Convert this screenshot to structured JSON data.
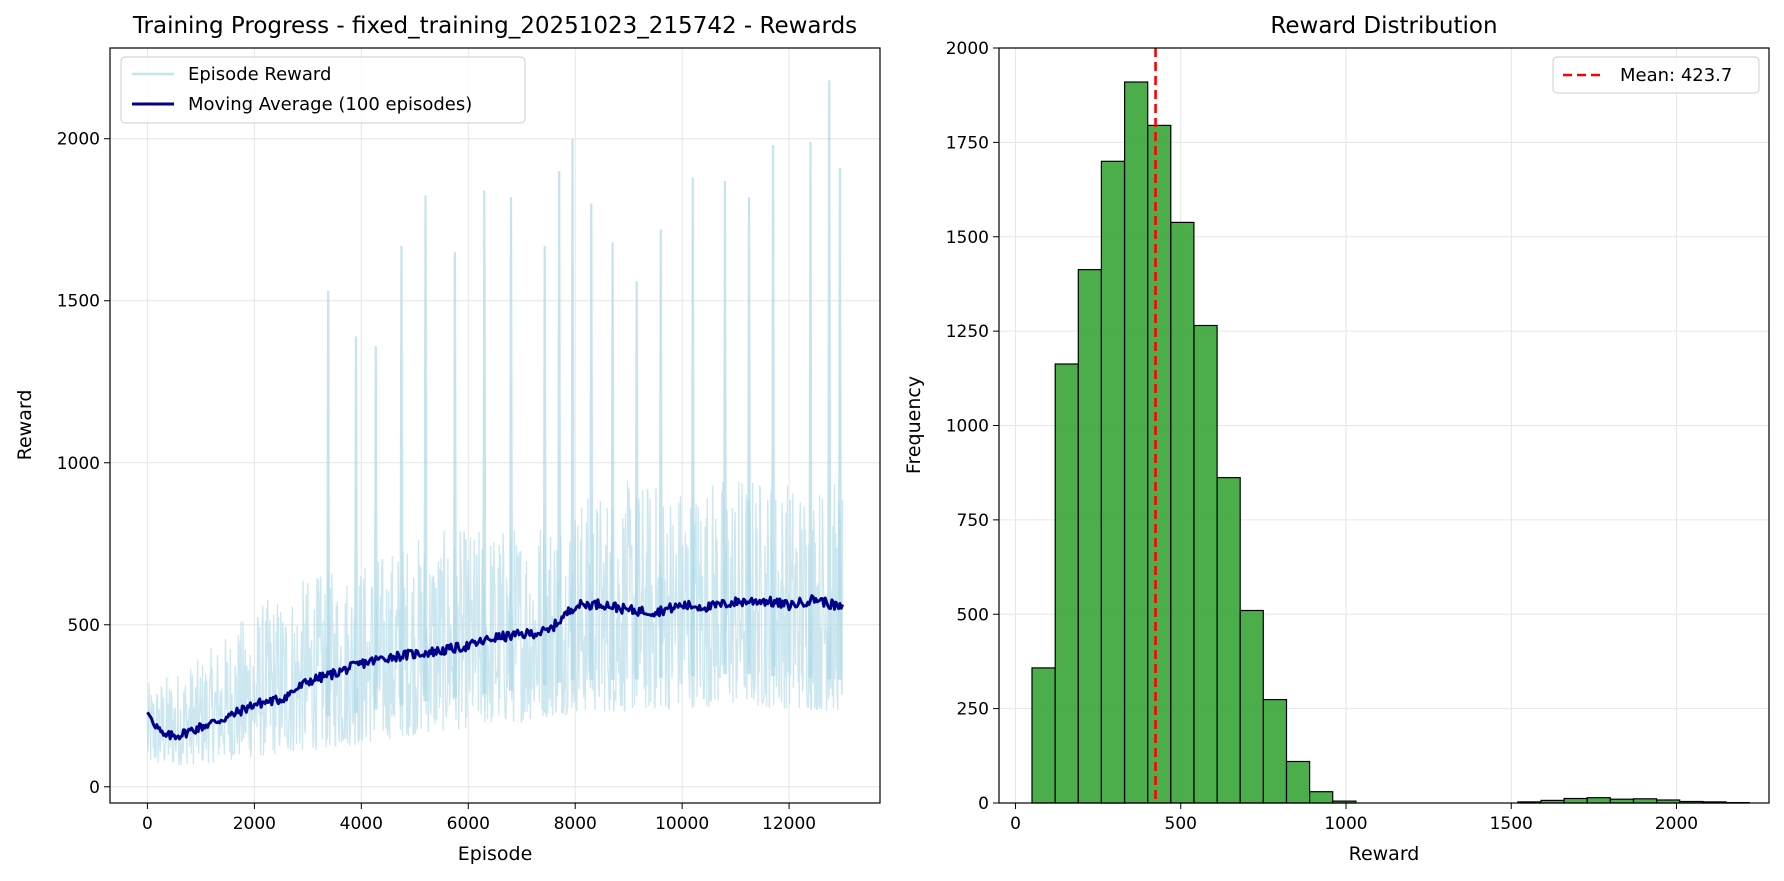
{
  "colors": {
    "episode_reward": "#add8e6",
    "moving_average": "#00008b",
    "histogram_bar": "#2ca02c",
    "histogram_edge": "#000000",
    "mean_line": "#ff0000",
    "grid": "#e6e6e6"
  },
  "chart_data": [
    {
      "type": "line",
      "title": "Training Progress - fixed_training_20251023_215742 - Rewards",
      "xlabel": "Episode",
      "ylabel": "Reward",
      "xlim": [
        -700,
        13700
      ],
      "ylim": [
        -50,
        2280
      ],
      "grid": true,
      "legend_position": "top-left",
      "xticks": [
        0,
        2000,
        4000,
        6000,
        8000,
        10000,
        12000
      ],
      "yticks": [
        0,
        500,
        1000,
        1500,
        2000
      ],
      "series": [
        {
          "name": "Episode Reward",
          "style": "thin light-blue line, noisy per-episode values",
          "episodes": 13000,
          "band_x": [
            0,
            1000,
            2000,
            3000,
            4000,
            5000,
            6000,
            7000,
            8000,
            9000,
            10000,
            11000,
            12000,
            13000
          ],
          "band_low": [
            60,
            70,
            90,
            110,
            130,
            160,
            180,
            200,
            230,
            230,
            240,
            250,
            240,
            230
          ],
          "band_high": [
            320,
            400,
            560,
            650,
            700,
            780,
            800,
            820,
            900,
            950,
            950,
            980,
            960,
            950
          ],
          "spikes": [
            {
              "x": 3380,
              "y": 1530
            },
            {
              "x": 3900,
              "y": 1390
            },
            {
              "x": 4270,
              "y": 1360
            },
            {
              "x": 4750,
              "y": 1670
            },
            {
              "x": 5200,
              "y": 1825
            },
            {
              "x": 5750,
              "y": 1650
            },
            {
              "x": 6300,
              "y": 1840
            },
            {
              "x": 6800,
              "y": 1820
            },
            {
              "x": 7430,
              "y": 1670
            },
            {
              "x": 7700,
              "y": 1900
            },
            {
              "x": 7950,
              "y": 2000
            },
            {
              "x": 8300,
              "y": 1800
            },
            {
              "x": 8700,
              "y": 1680
            },
            {
              "x": 9150,
              "y": 1560
            },
            {
              "x": 9600,
              "y": 1720
            },
            {
              "x": 10200,
              "y": 1880
            },
            {
              "x": 10800,
              "y": 1870
            },
            {
              "x": 11250,
              "y": 1820
            },
            {
              "x": 11700,
              "y": 1980
            },
            {
              "x": 12400,
              "y": 1990
            },
            {
              "x": 12750,
              "y": 2180
            },
            {
              "x": 12950,
              "y": 1910
            }
          ]
        },
        {
          "name": "Moving Average (100 episodes)",
          "x": [
            0,
            300,
            600,
            1000,
            1500,
            2000,
            2500,
            3000,
            3500,
            4000,
            4500,
            5000,
            5500,
            6000,
            6500,
            7000,
            7500,
            8000,
            8500,
            9000,
            9500,
            10000,
            10500,
            11000,
            11500,
            12000,
            12500,
            13000
          ],
          "y": [
            230,
            155,
            160,
            185,
            215,
            255,
            270,
            325,
            350,
            380,
            400,
            410,
            420,
            435,
            460,
            470,
            480,
            560,
            565,
            545,
            540,
            560,
            555,
            570,
            575,
            560,
            580,
            550
          ]
        }
      ]
    },
    {
      "type": "bar",
      "subtype": "histogram",
      "title": "Reward Distribution",
      "xlabel": "Reward",
      "ylabel": "Frequency",
      "xlim": [
        -50,
        2280
      ],
      "ylim": [
        0,
        2000
      ],
      "grid": true,
      "legend_position": "top-right",
      "xticks": [
        0,
        500,
        1000,
        1500,
        2000
      ],
      "yticks": [
        0,
        250,
        500,
        750,
        1000,
        1250,
        1500,
        1750,
        2000
      ],
      "bin_start": 50,
      "bin_width": 70,
      "counts": [
        358,
        1163,
        1413,
        1700,
        1910,
        1795,
        1538,
        1265,
        862,
        510,
        274,
        110,
        30,
        5,
        0,
        0,
        0,
        0,
        0,
        0,
        0,
        3,
        7,
        12,
        14,
        10,
        11,
        8,
        4,
        3,
        1,
        0
      ],
      "mean_line": {
        "label": "Mean: 423.7",
        "value": 423.7
      }
    }
  ]
}
